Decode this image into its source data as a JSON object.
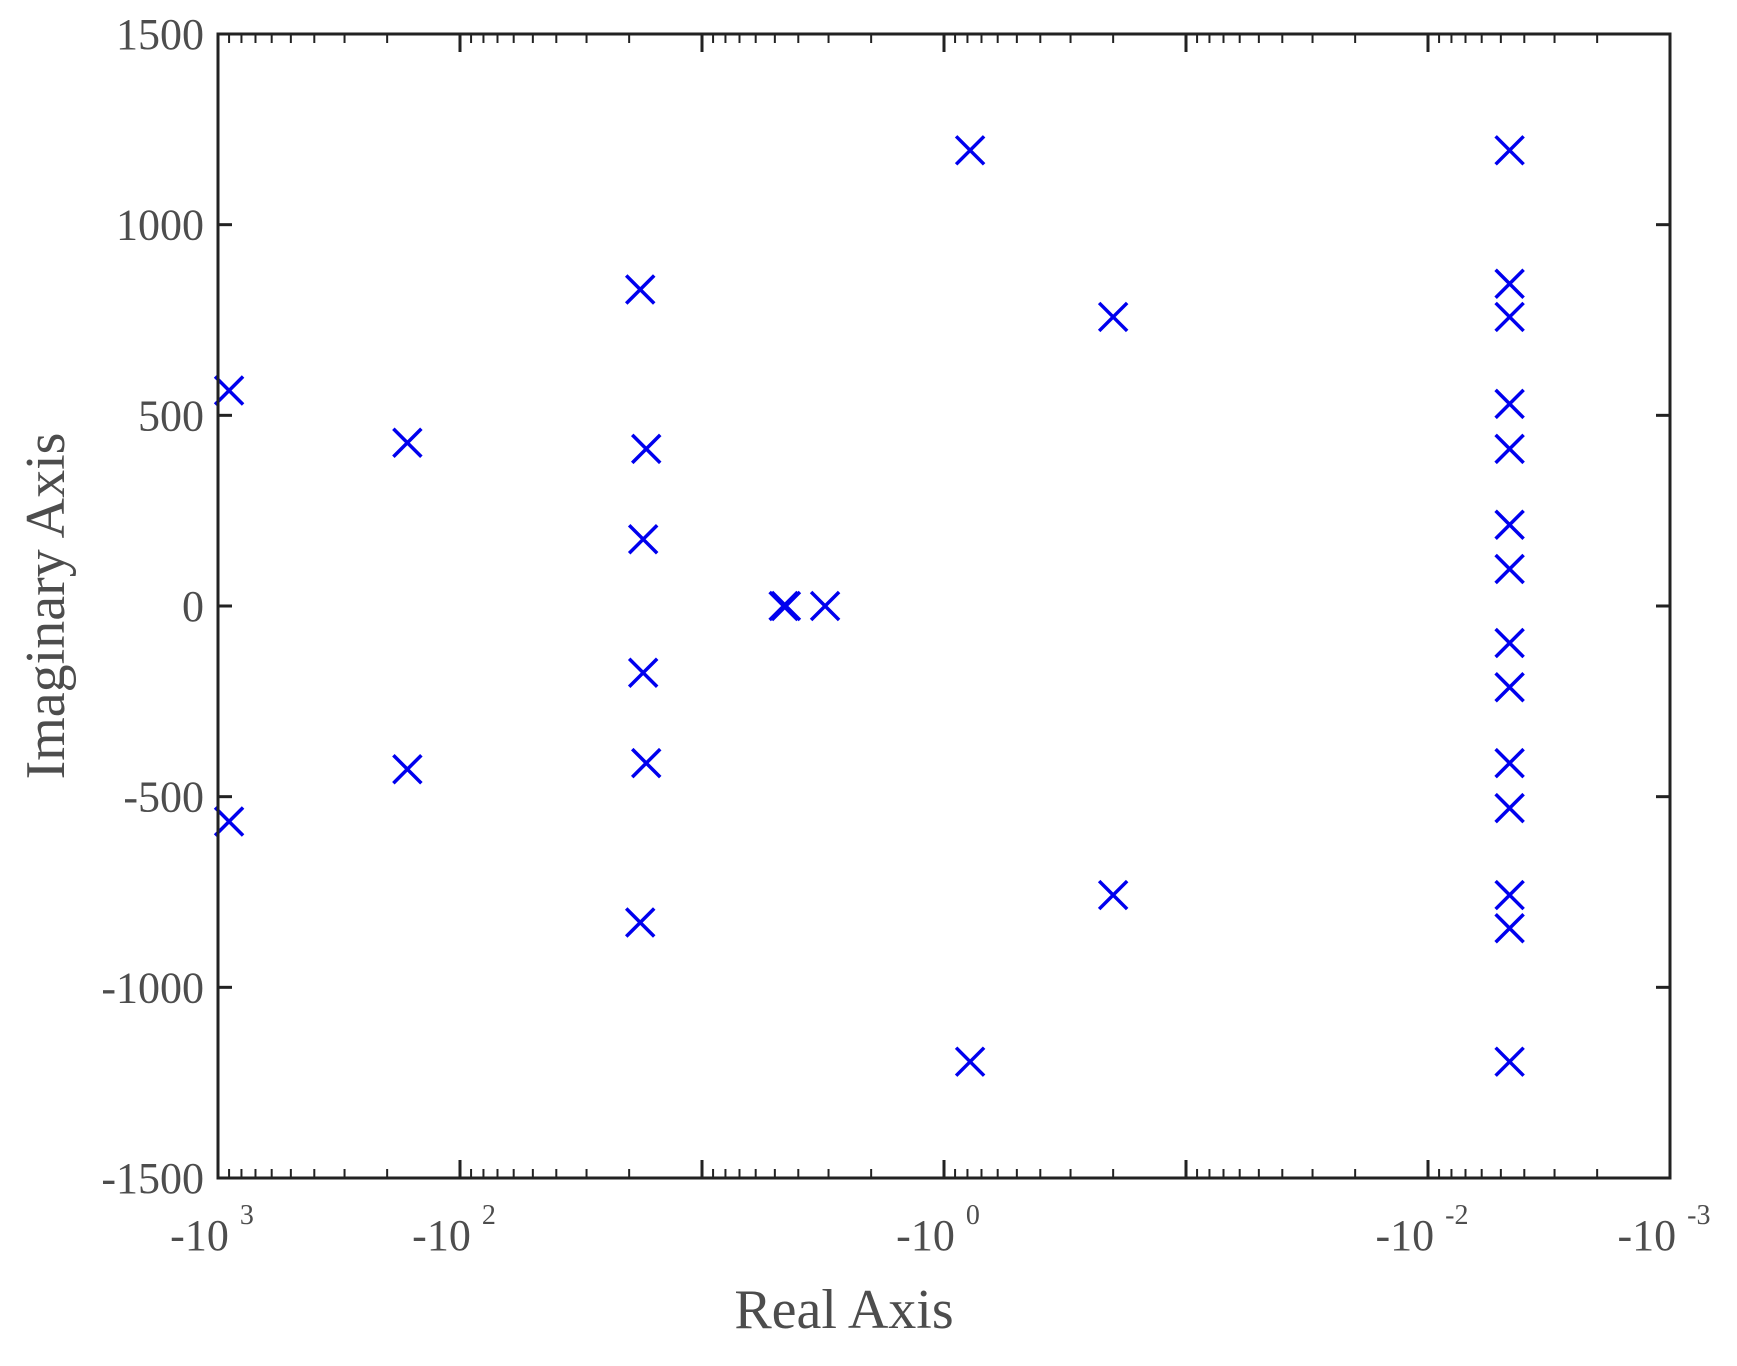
{
  "chart_data": {
    "type": "scatter",
    "xlabel": "Real Axis",
    "ylabel": "Imaginary Axis",
    "x_scale": "symlog-negative",
    "xlim": [
      -1000,
      -0.001
    ],
    "ylim": [
      -1500,
      1500
    ],
    "y_ticks": [
      {
        "value": -1500,
        "label": "-1500"
      },
      {
        "value": -1000,
        "label": "-1000"
      },
      {
        "value": -500,
        "label": "-500"
      },
      {
        "value": 0,
        "label": "0"
      },
      {
        "value": 500,
        "label": "500"
      },
      {
        "value": 1000,
        "label": "1000"
      },
      {
        "value": 1500,
        "label": "1500"
      }
    ],
    "x_ticks": [
      {
        "value": -1000,
        "base": "-10",
        "exp": "3"
      },
      {
        "value": -100,
        "base": "-10",
        "exp": "2"
      },
      {
        "value": -1,
        "base": "-10",
        "exp": "0"
      },
      {
        "value": -0.01,
        "base": "-10",
        "exp": "-2"
      },
      {
        "value": -0.001,
        "base": "-10",
        "exp": "-3"
      }
    ],
    "marker": "x",
    "marker_color": "#0000ee",
    "series": [
      {
        "points": [
          {
            "x": -900,
            "y": 565
          },
          {
            "x": -900,
            "y": -565
          },
          {
            "x": -165,
            "y": 428
          },
          {
            "x": -165,
            "y": -428
          },
          {
            "x": -18,
            "y": 830
          },
          {
            "x": -18,
            "y": -830
          },
          {
            "x": -17,
            "y": 412
          },
          {
            "x": -17,
            "y": -412
          },
          {
            "x": -17.5,
            "y": 175
          },
          {
            "x": -17.5,
            "y": -175
          },
          {
            "x": -4.6,
            "y": 0
          },
          {
            "x": -4.5,
            "y": 0
          },
          {
            "x": -3.1,
            "y": 0
          },
          {
            "x": -0.78,
            "y": 1195
          },
          {
            "x": -0.78,
            "y": -1195
          },
          {
            "x": -0.2,
            "y": 758
          },
          {
            "x": -0.2,
            "y": -758
          },
          {
            "x": -0.0046,
            "y": 1195
          },
          {
            "x": -0.0046,
            "y": -1195
          },
          {
            "x": -0.0046,
            "y": 845
          },
          {
            "x": -0.0046,
            "y": -845
          },
          {
            "x": -0.0046,
            "y": 758
          },
          {
            "x": -0.0046,
            "y": -758
          },
          {
            "x": -0.0046,
            "y": 530
          },
          {
            "x": -0.0046,
            "y": -530
          },
          {
            "x": -0.0046,
            "y": 412
          },
          {
            "x": -0.0046,
            "y": -412
          },
          {
            "x": -0.0046,
            "y": 213
          },
          {
            "x": -0.0046,
            "y": -213
          },
          {
            "x": -0.0046,
            "y": 97
          },
          {
            "x": -0.0046,
            "y": -97
          }
        ]
      }
    ]
  }
}
